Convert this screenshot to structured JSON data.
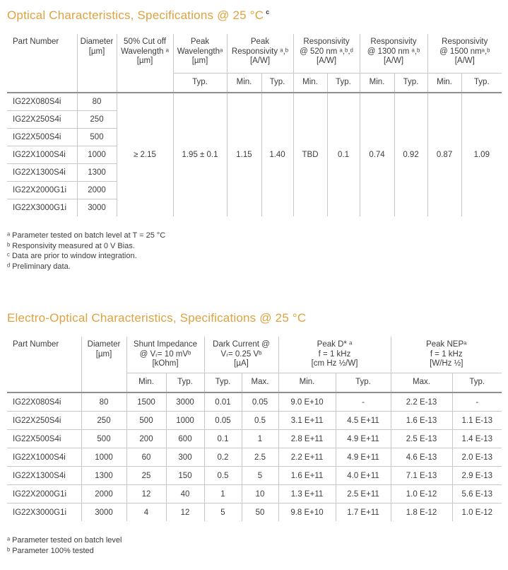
{
  "page": {
    "background": "#ffffff",
    "accent_color": "#dfa23f",
    "text_color": "#3c3c3c"
  },
  "optical": {
    "title": "Optical Characteristics, Specifications @ 25 °C",
    "title_note": "c",
    "headers": [
      "Part Number",
      "Diameter\n[µm]",
      "50% Cut off\nWavelength ᵃ\n[µm]",
      "Peak\nWavelengthᵃ\n[µm]",
      "Peak\nResponsivity ᵃ,ᵇ\n[A/W]",
      "Responsivity\n@ 520 nm ᵃ,ᵇ,ᵈ\n[A/W]",
      "Responsivity\n@ 1300 nm ᵃ,ᵇ\n[A/W]",
      "Responsivity\n@ 1500 nmᵃ,ᵇ\n[A/W]"
    ],
    "subheaders": [
      "Typ.",
      "Min.",
      "Typ.",
      "Min.",
      "Typ.",
      "Min.",
      "Typ.",
      "Min.",
      "Typ."
    ],
    "rows": [
      [
        "IG22X080S4i",
        "80"
      ],
      [
        "IG22X250S4i",
        "250"
      ],
      [
        "IG22X500S4i",
        "500"
      ],
      [
        "IG22X1000S4i",
        "1000"
      ],
      [
        "IG22X1300S4i",
        "1300"
      ],
      [
        "IG22X2000G1i",
        "2000"
      ],
      [
        "IG22X3000G1i",
        "3000"
      ]
    ],
    "merged": [
      "≥ 2.15",
      "1.95 ± 0.1",
      "1.15",
      "1.40",
      "TBD",
      "0.1",
      "0.74",
      "0.92",
      "0.87",
      "1.09"
    ],
    "footnotes": [
      "ᵃ Parameter tested on batch level at T = 25 °C",
      "ᵇ Responsivity measured at 0 V Bias.",
      "ᶜ Data are prior to window integration.",
      "ᵈ Preliminary data."
    ]
  },
  "electro": {
    "title": "Electro-Optical Characteristics, Specifications @ 25 °C",
    "headers": [
      "Part Number",
      "Diameter\n[µm]",
      "Shunt Impedance\n@ Vᵣ= 10 mVᵇ\n[kOhm]",
      "Dark Current @\nVᵣ= 0.25 Vᵇ\n[µA]",
      "Peak D* ᵃ\nf = 1 kHz\n[cm Hz ½/W]",
      "Peak NEPᵃ\nf = 1 kHz\n[W/Hz ½]"
    ],
    "subheaders": [
      "Min.",
      "Typ.",
      "Typ.",
      "Max.",
      "Min.",
      "Typ.",
      "Max.",
      "Typ."
    ],
    "rows": [
      [
        "IG22X080S4i",
        "80",
        "1500",
        "3000",
        "0.01",
        "0.05",
        "9.0 E+10",
        "-",
        "2.2 E-13",
        "-"
      ],
      [
        "IG22X250S4i",
        "250",
        "500",
        "1000",
        "0.05",
        "0.5",
        "3.1 E+11",
        "4.5 E+11",
        "1.6 E-13",
        "1.1 E-13"
      ],
      [
        "IG22X500S4i",
        "500",
        "200",
        "600",
        "0.1",
        "1",
        "2.8 E+11",
        "4.9 E+11",
        "2.5 E-13",
        "1.4 E-13"
      ],
      [
        "IG22X1000S4i",
        "1000",
        "60",
        "300",
        "0.2",
        "2.5",
        "2.2 E+11",
        "4.9 E+11",
        "4.6 E-13",
        "2.0 E-13"
      ],
      [
        "IG22X1300S4i",
        "1300",
        "25",
        "150",
        "0.5",
        "5",
        "1.6 E+11",
        "4.0 E+11",
        "7.1 E-13",
        "2.9 E-13"
      ],
      [
        "IG22X2000G1i",
        "2000",
        "12",
        "40",
        "1",
        "10",
        "1.3 E+11",
        "2.5 E+11",
        "1.0 E-12",
        "5.6 E-13"
      ],
      [
        "IG22X3000G1i",
        "3000",
        "4",
        "12",
        "5",
        "50",
        "9.8 E+10",
        "1.7 E+11",
        "1.8 E-12",
        "1.0 E-12"
      ]
    ],
    "footnotes": [
      "ᵃ Parameter tested on batch level",
      "ᵇ Parameter 100% tested"
    ]
  }
}
